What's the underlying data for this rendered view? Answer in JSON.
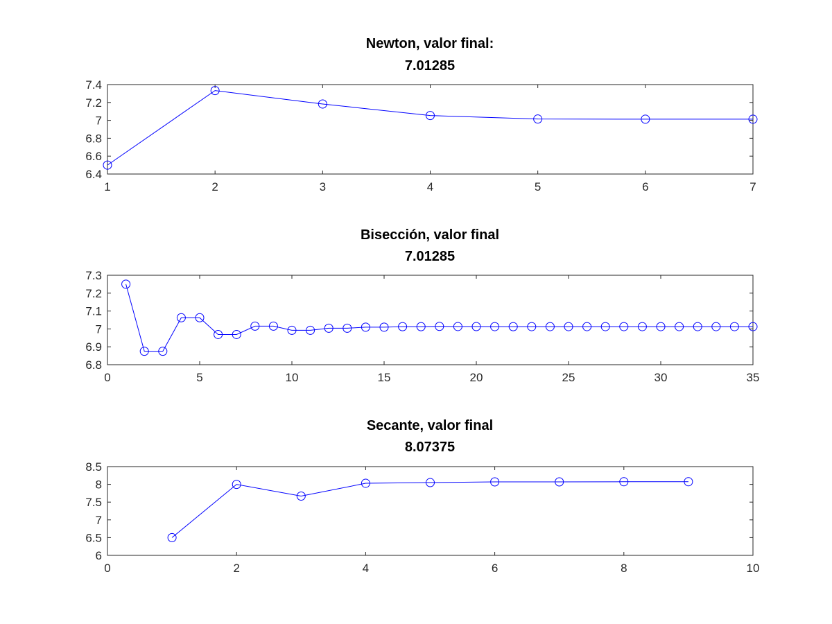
{
  "chart_data": [
    {
      "type": "line",
      "title_line1": "Newton, valor final:",
      "title_line2": "7.01285",
      "xlim": [
        1,
        7
      ],
      "ylim": [
        6.4,
        7.4
      ],
      "xticks": [
        "1",
        "2",
        "3",
        "4",
        "5",
        "6",
        "7"
      ],
      "yticks": [
        "6.4",
        "6.6",
        "6.8",
        "7",
        "7.2",
        "7.4"
      ],
      "grid": false,
      "color": "#0000ff",
      "marker": "circle",
      "x": [
        1,
        2,
        3,
        4,
        5,
        6,
        7
      ],
      "y": [
        6.5,
        7.333,
        7.183,
        7.054,
        7.015,
        7.013,
        7.013
      ]
    },
    {
      "type": "line",
      "title_line1": "Bisección, valor final",
      "title_line2": "7.01285",
      "xlim": [
        0,
        35
      ],
      "ylim": [
        6.8,
        7.3
      ],
      "xticks": [
        "0",
        "5",
        "10",
        "15",
        "20",
        "25",
        "30",
        "35"
      ],
      "yticks": [
        "6.8",
        "6.9",
        "7",
        "7.1",
        "7.2",
        "7.3"
      ],
      "grid": false,
      "color": "#0000ff",
      "marker": "circle",
      "x": [
        1,
        2,
        3,
        4,
        5,
        6,
        7,
        8,
        9,
        10,
        11,
        12,
        13,
        14,
        15,
        16,
        17,
        18,
        19,
        20,
        21,
        22,
        23,
        24,
        25,
        26,
        27,
        28,
        29,
        30,
        31,
        32,
        33,
        34,
        35
      ],
      "y": [
        7.25,
        6.875,
        6.875,
        7.0625,
        7.0625,
        6.96875,
        6.96875,
        7.015625,
        7.015625,
        6.9921875,
        6.9921875,
        7.00390625,
        7.00390625,
        7.0097656,
        7.0097656,
        7.0126953,
        7.0126953,
        7.0141602,
        7.0134277,
        7.0130615,
        7.0128784,
        7.0127869,
        7.0128326,
        7.0128555,
        7.0128441,
        7.0128498,
        7.0128527,
        7.0128512,
        7.012852,
        7.0128516,
        7.0128514,
        7.0128513,
        7.0128513,
        7.0128513,
        7.0128513
      ]
    },
    {
      "type": "line",
      "title_line1": "Secante, valor final",
      "title_line2": "8.07375",
      "xlim": [
        0,
        10
      ],
      "ylim": [
        6,
        8.5
      ],
      "xticks": [
        "0",
        "2",
        "4",
        "6",
        "8",
        "10"
      ],
      "yticks": [
        "6",
        "6.5",
        "7",
        "7.5",
        "8",
        "8.5"
      ],
      "grid": false,
      "color": "#0000ff",
      "marker": "circle",
      "x": [
        1,
        2,
        3,
        4,
        5,
        6,
        7,
        8,
        9
      ],
      "y": [
        6.5,
        8.0,
        7.67,
        8.03,
        8.05,
        8.07,
        8.07,
        8.074,
        8.074
      ]
    }
  ]
}
